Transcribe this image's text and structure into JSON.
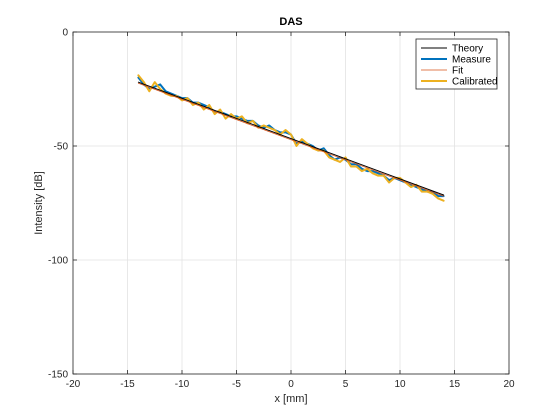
{
  "chart_data": {
    "type": "line",
    "title": "DAS",
    "xlabel": "x [mm]",
    "ylabel": "Intensity [dB]",
    "xlim": [
      -20,
      20
    ],
    "ylim": [
      -150,
      0
    ],
    "xticks": [
      -20,
      -15,
      -10,
      -5,
      0,
      5,
      10,
      15,
      20
    ],
    "yticks": [
      0,
      -50,
      -100,
      -150
    ],
    "grid": true,
    "legend_position": "top-right",
    "series": [
      {
        "name": "Theory",
        "color": "#000000",
        "x": [
          -14,
          14
        ],
        "y": [
          -22,
          -71.5
        ]
      },
      {
        "name": "Measure",
        "color": "#0072BD",
        "x": [
          -14,
          -13.5,
          -13,
          -12.5,
          -12,
          -11.5,
          -11,
          -10.5,
          -10,
          -9.5,
          -9,
          -8.5,
          -8,
          -7.5,
          -7,
          -6.5,
          -6,
          -5.5,
          -5,
          -4.5,
          -4,
          -3.5,
          -3,
          -2.5,
          -2,
          -1.5,
          -1,
          -0.5,
          0,
          0.5,
          1,
          1.5,
          2,
          2.5,
          3,
          3.5,
          4,
          4.5,
          5,
          5.5,
          6,
          6.5,
          7,
          7.5,
          8,
          8.5,
          9,
          9.5,
          10,
          10.5,
          11,
          11.5,
          12,
          12.5,
          13,
          13.5,
          14
        ],
        "y": [
          -20,
          -23,
          -25,
          -24,
          -23,
          -26,
          -27,
          -28,
          -29,
          -29,
          -31,
          -31,
          -32,
          -33,
          -35,
          -35,
          -36,
          -37,
          -37,
          -38,
          -39,
          -39,
          -41,
          -42,
          -41,
          -43,
          -44,
          -44,
          -45,
          -49,
          -48,
          -49,
          -50,
          -52,
          -51,
          -54,
          -56,
          -55,
          -56,
          -58,
          -58,
          -60,
          -61,
          -61,
          -62,
          -63,
          -65,
          -64,
          -65,
          -66,
          -67,
          -68,
          -69,
          -70,
          -70,
          -72,
          -72
        ]
      },
      {
        "name": "Fit",
        "color": "#D95319",
        "x": [
          -14,
          14
        ],
        "y": [
          -22.5,
          -72
        ]
      },
      {
        "name": "Calibrated",
        "color": "#EDB120",
        "x": [
          -14,
          -13.5,
          -13,
          -12.5,
          -12,
          -11.5,
          -11,
          -10.5,
          -10,
          -9.5,
          -9,
          -8.5,
          -8,
          -7.5,
          -7,
          -6.5,
          -6,
          -5.5,
          -5,
          -4.5,
          -4,
          -3.5,
          -3,
          -2.5,
          -2,
          -1.5,
          -1,
          -0.5,
          0,
          0.5,
          1,
          1.5,
          2,
          2.5,
          3,
          3.5,
          4,
          4.5,
          5,
          5.5,
          6,
          6.5,
          7,
          7.5,
          8,
          8.5,
          9,
          9.5,
          10,
          10.5,
          11,
          11.5,
          12,
          12.5,
          13,
          13.5,
          14
        ],
        "y": [
          -19,
          -22,
          -26,
          -22,
          -25,
          -27,
          -28,
          -28,
          -30,
          -29,
          -32,
          -31,
          -34,
          -32,
          -36,
          -34,
          -38,
          -36,
          -38,
          -37,
          -40,
          -39,
          -42,
          -41,
          -42,
          -43,
          -45,
          -43,
          -45,
          -50,
          -47,
          -49,
          -51,
          -52,
          -52,
          -55,
          -56,
          -57,
          -55,
          -59,
          -59,
          -61,
          -60,
          -62,
          -63,
          -63,
          -66,
          -64,
          -64,
          -66,
          -68,
          -67,
          -70,
          -70,
          -71,
          -73,
          -74
        ]
      }
    ]
  }
}
